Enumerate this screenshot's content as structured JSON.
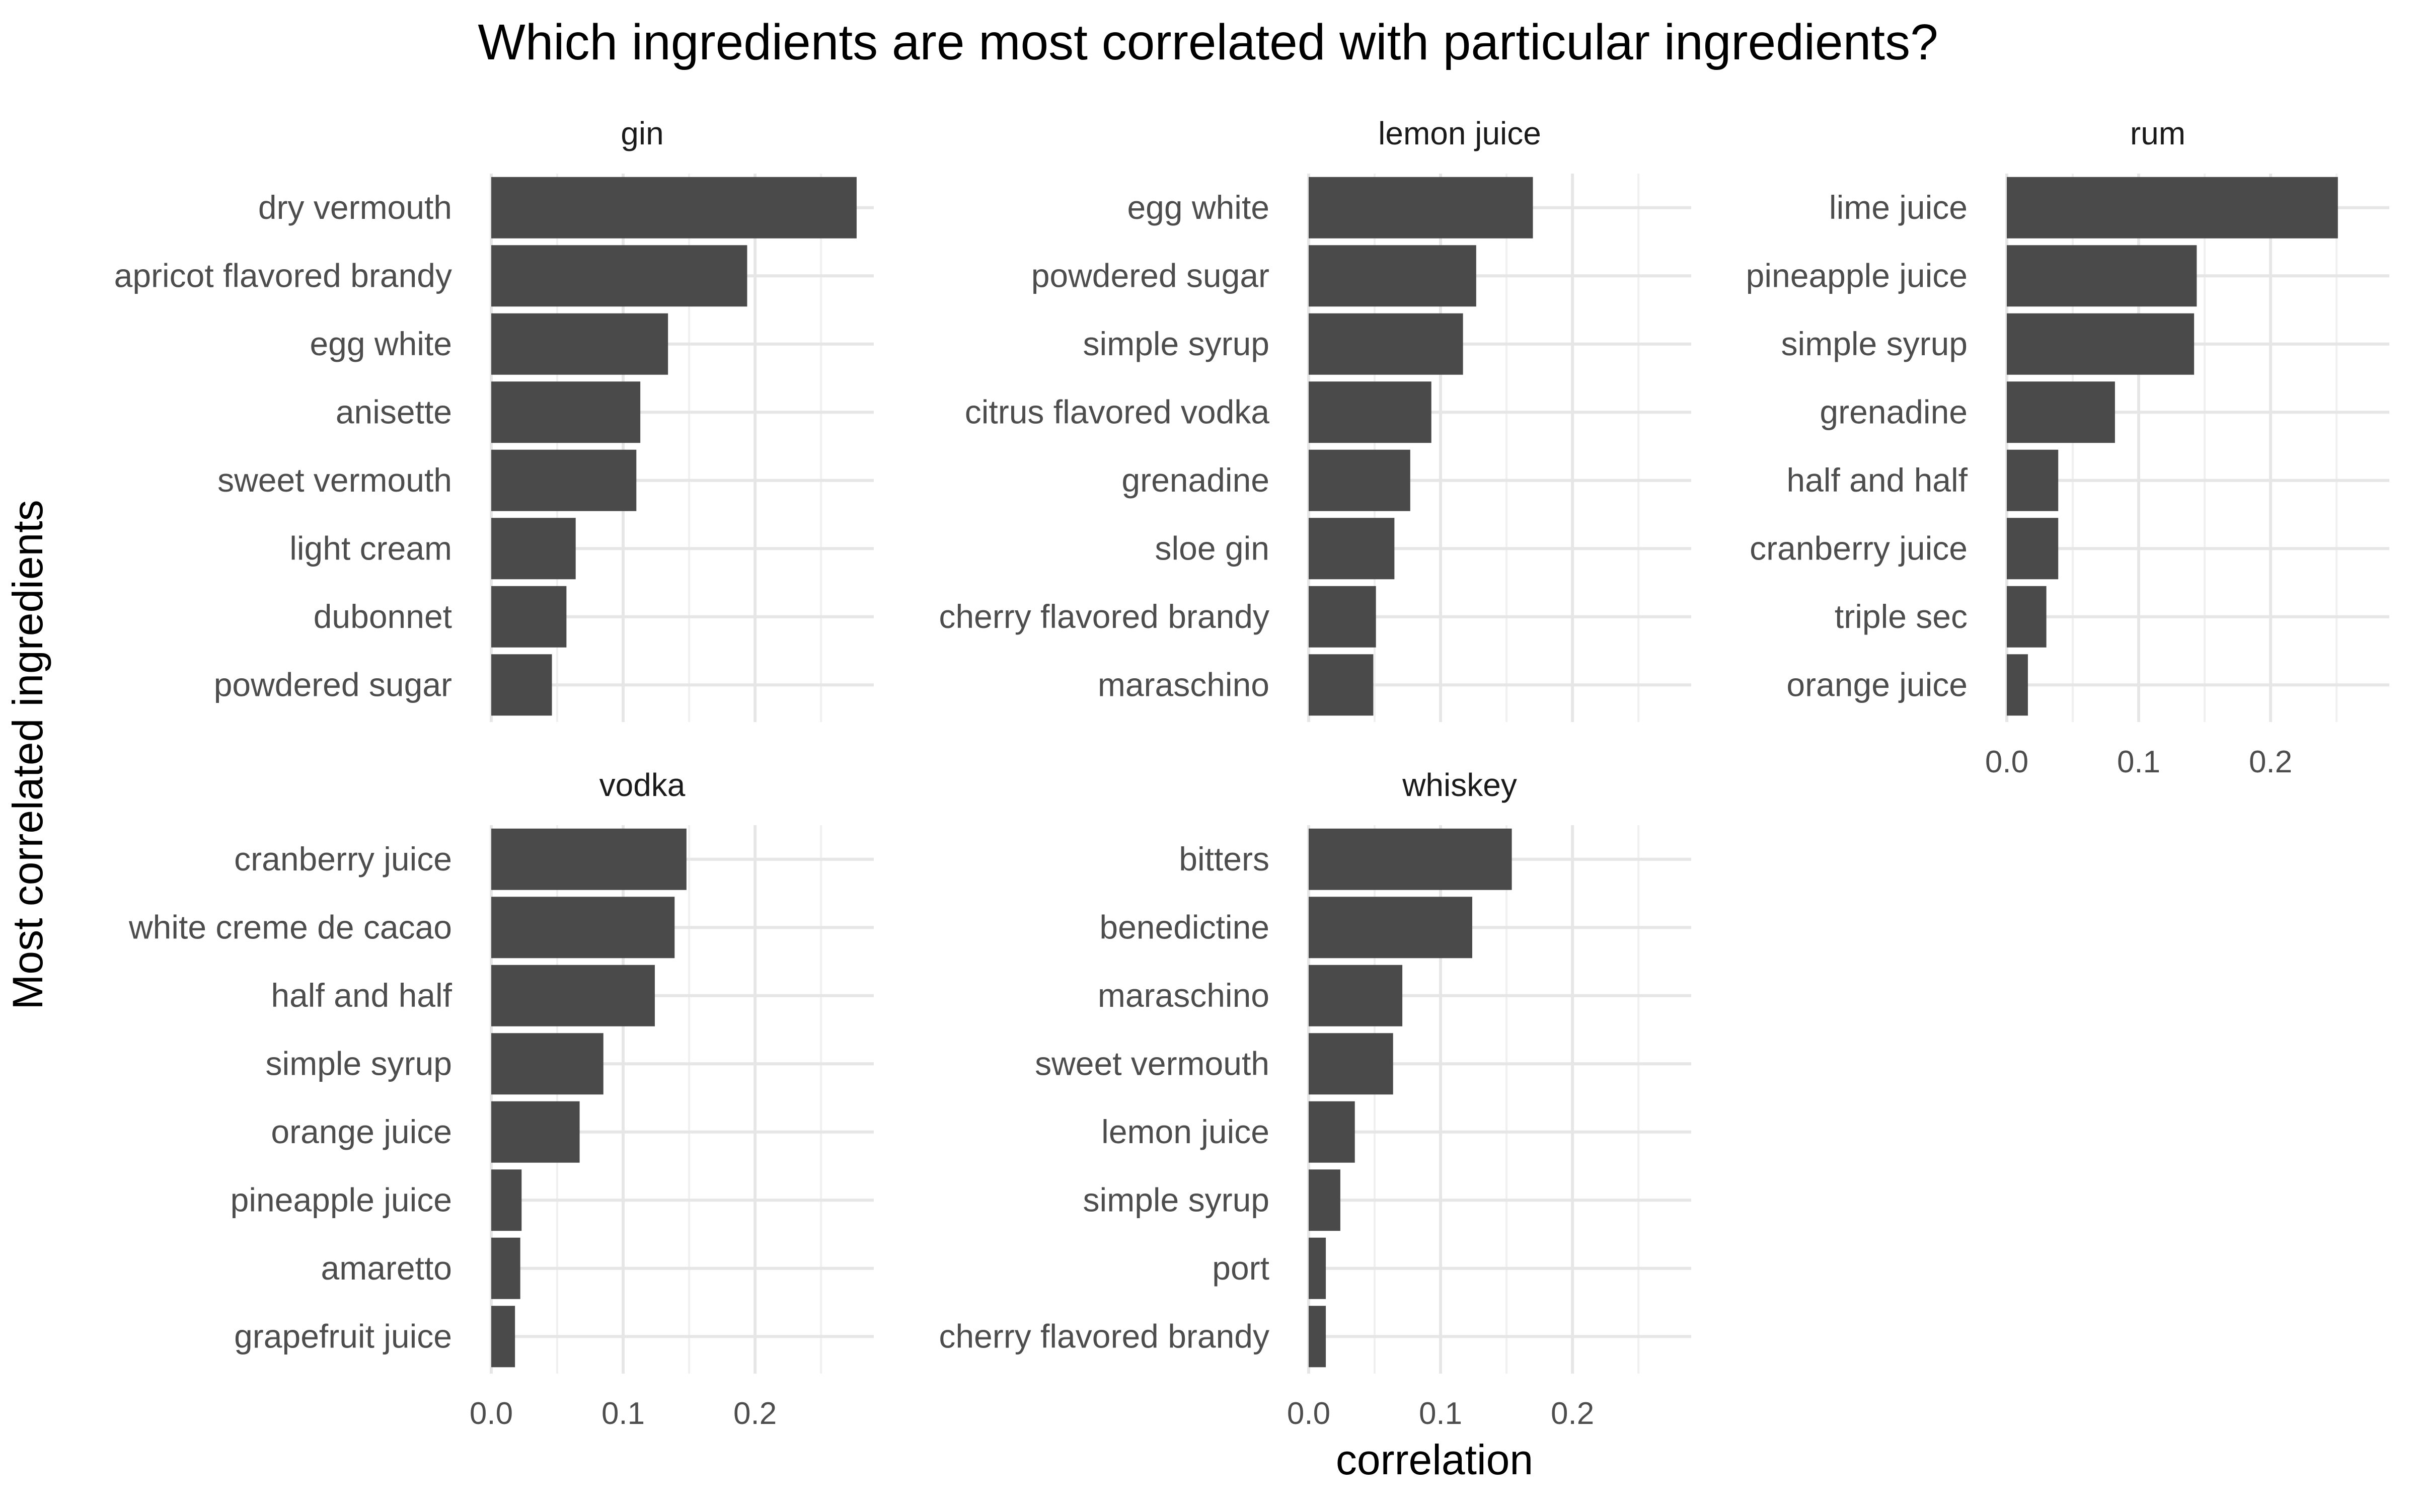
{
  "chart_data": {
    "type": "bar",
    "orientation": "horizontal",
    "title": "Which ingredients are most correlated with particular ingredients?",
    "xlabel": "correlation",
    "ylabel": "Most correlated ingredients",
    "xlim": [
      0,
      0.29
    ],
    "x_ticks": [
      "0.0",
      "0.1",
      "0.2"
    ],
    "x_tick_values": [
      0,
      0.1,
      0.2
    ],
    "grid": true,
    "bar_color": "#4a4a4a",
    "facets": [
      {
        "name": "gin",
        "categories": [
          "dry vermouth",
          "apricot flavored brandy",
          "egg white",
          "anisette",
          "sweet vermouth",
          "light cream",
          "dubonnet",
          "powdered sugar"
        ],
        "values": [
          0.277,
          0.194,
          0.134,
          0.113,
          0.11,
          0.064,
          0.057,
          0.046
        ]
      },
      {
        "name": "lemon juice",
        "categories": [
          "egg white",
          "powdered sugar",
          "simple syrup",
          "citrus flavored vodka",
          "grenadine",
          "sloe gin",
          "cherry flavored brandy",
          "maraschino"
        ],
        "values": [
          0.17,
          0.127,
          0.117,
          0.093,
          0.077,
          0.065,
          0.051,
          0.049
        ]
      },
      {
        "name": "rum",
        "categories": [
          "lime juice",
          "pineapple juice",
          "simple syrup",
          "grenadine",
          "half and half",
          "cranberry juice",
          "triple sec",
          "orange juice"
        ],
        "values": [
          0.251,
          0.144,
          0.142,
          0.082,
          0.039,
          0.039,
          0.03,
          0.016
        ]
      },
      {
        "name": "vodka",
        "categories": [
          "cranberry juice",
          "white creme de cacao",
          "half and half",
          "simple syrup",
          "orange juice",
          "pineapple juice",
          "amaretto",
          "grapefruit juice"
        ],
        "values": [
          0.148,
          0.139,
          0.124,
          0.085,
          0.067,
          0.023,
          0.022,
          0.018
        ]
      },
      {
        "name": "whiskey",
        "categories": [
          "bitters",
          "benedictine",
          "maraschino",
          "sweet vermouth",
          "lemon juice",
          "simple syrup",
          "port",
          "cherry flavored brandy"
        ],
        "values": [
          0.154,
          0.124,
          0.071,
          0.064,
          0.035,
          0.024,
          0.013,
          0.013
        ]
      }
    ]
  }
}
